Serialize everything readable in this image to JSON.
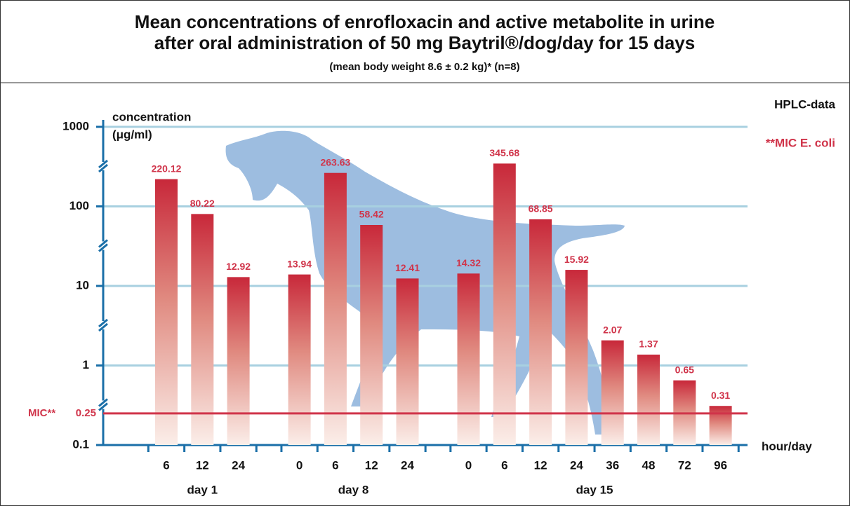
{
  "chart_data": {
    "type": "bar",
    "title": [
      "Mean concentrations of enrofloxacin and active metabolite in urine",
      "after oral administration of 50 mg Baytril®/dog/day for 15 days"
    ],
    "subtitle": "(mean body weight 8.6 ± 0.2 kg)*  (n=8)",
    "ylabel": [
      "concentration",
      "(μg/ml)"
    ],
    "xlabel": "hour/day",
    "annotations": [
      "HPLC-data",
      "**MIC E. coli"
    ],
    "log_scale": true,
    "ylim": [
      0.1,
      1000
    ],
    "yticks": [
      0.1,
      1,
      10,
      100,
      1000
    ],
    "grid": true,
    "color": "#c8283a",
    "groups": [
      {
        "label": "day 1",
        "categories": [
          "6",
          "12",
          "24"
        ],
        "values": [
          220.12,
          80.22,
          12.92
        ]
      },
      {
        "label": "day 8",
        "categories": [
          "0",
          "6",
          "12",
          "24"
        ],
        "values": [
          13.94,
          263.63,
          58.42,
          12.41
        ]
      },
      {
        "label": "day 15",
        "categories": [
          "0",
          "6",
          "12",
          "24",
          "36",
          "48",
          "72",
          "96"
        ],
        "values": [
          14.32,
          345.68,
          68.85,
          15.92,
          2.07,
          1.37,
          0.65,
          0.31
        ]
      }
    ],
    "reference_line": {
      "label": "MIC**",
      "value": 0.25,
      "color": "#d0344a"
    }
  }
}
